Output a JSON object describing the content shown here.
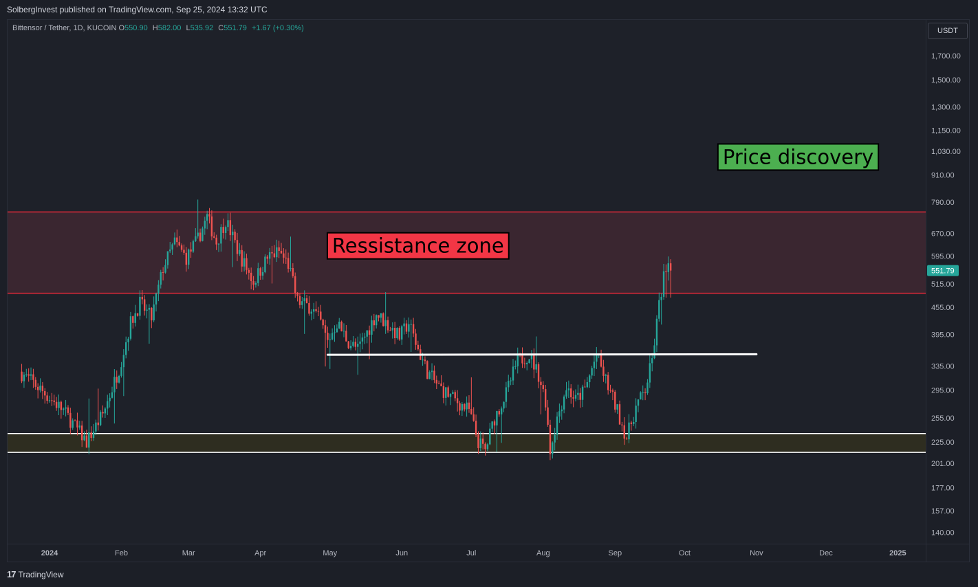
{
  "header": {
    "published_line": "SolbergInvest published on TradingView.com, Sep 25, 2024 13:32 UTC"
  },
  "symbol": {
    "title": "Bittensor / Tether, 1D, KUCOIN",
    "o_label": "O",
    "o": "550.90",
    "h_label": "H",
    "h": "582.00",
    "l_label": "L",
    "l": "535.92",
    "c_label": "C",
    "c": "551.79",
    "change": "+1.67 (+0.30%)"
  },
  "currency_button": "USDT",
  "footer": {
    "brand": "TradingView",
    "logo": "17"
  },
  "colors": {
    "up": "#26a69a",
    "down": "#ef5350",
    "resistance_line": "#e0293a",
    "resistance_fill": "#3a2630",
    "support_fill": "#2e2d20",
    "trend_line": "#ffffff",
    "price_discovery_bg": "#4caf50",
    "resistance_label_bg": "#f23645"
  },
  "chart_data": {
    "type": "candlestick",
    "y_scale": "log",
    "ylim": [
      132,
      2050
    ],
    "y_ticks": [
      "1,700.00",
      "1,500.00",
      "1,300.00",
      "1,150.00",
      "1,030.00",
      "910.00",
      "790.00",
      "670.00",
      "595.00",
      "515.00",
      "455.00",
      "395.00",
      "335.00",
      "295.00",
      "255.00",
      "225.00",
      "201.00",
      "177.00",
      "157.00",
      "140.00"
    ],
    "x_ticks": [
      "2024",
      "Feb",
      "Mar",
      "Apr",
      "May",
      "Jun",
      "Jul",
      "Aug",
      "Sep",
      "Oct",
      "Nov",
      "Dec",
      "2025"
    ],
    "x_tick_dates": [
      "2024-01-01",
      "2024-02-01",
      "2024-03-01",
      "2024-04-01",
      "2024-05-01",
      "2024-06-01",
      "2024-07-01",
      "2024-08-01",
      "2024-09-01",
      "2024-10-01",
      "2024-11-01",
      "2024-12-01",
      "2025-01-01"
    ],
    "last_price": "551.79",
    "anchors": [
      [
        "2023-12-20",
        325
      ],
      [
        "2023-12-25",
        310
      ],
      [
        "2023-12-31",
        290
      ],
      [
        "2024-01-08",
        265
      ],
      [
        "2024-01-14",
        240
      ],
      [
        "2024-01-18",
        225
      ],
      [
        "2024-01-25",
        260
      ],
      [
        "2024-02-01",
        330
      ],
      [
        "2024-02-06",
        420
      ],
      [
        "2024-02-10",
        465
      ],
      [
        "2024-02-15",
        430
      ],
      [
        "2024-02-20",
        560
      ],
      [
        "2024-02-25",
        640
      ],
      [
        "2024-03-01",
        590
      ],
      [
        "2024-03-06",
        650
      ],
      [
        "2024-03-10",
        730
      ],
      [
        "2024-03-14",
        640
      ],
      [
        "2024-03-18",
        720
      ],
      [
        "2024-03-24",
        600
      ],
      [
        "2024-03-30",
        520
      ],
      [
        "2024-04-05",
        590
      ],
      [
        "2024-04-10",
        610
      ],
      [
        "2024-04-14",
        570
      ],
      [
        "2024-04-18",
        470
      ],
      [
        "2024-04-24",
        455
      ],
      [
        "2024-04-28",
        420
      ],
      [
        "2024-05-01",
        380
      ],
      [
        "2024-05-05",
        420
      ],
      [
        "2024-05-10",
        380
      ],
      [
        "2024-05-14",
        365
      ],
      [
        "2024-05-18",
        400
      ],
      [
        "2024-05-22",
        440
      ],
      [
        "2024-05-26",
        420
      ],
      [
        "2024-06-01",
        390
      ],
      [
        "2024-06-05",
        420
      ],
      [
        "2024-06-09",
        365
      ],
      [
        "2024-06-13",
        325
      ],
      [
        "2024-06-18",
        300
      ],
      [
        "2024-06-25",
        280
      ],
      [
        "2024-07-01",
        265
      ],
      [
        "2024-07-05",
        225
      ],
      [
        "2024-07-08",
        215
      ],
      [
        "2024-07-12",
        255
      ],
      [
        "2024-07-17",
        290
      ],
      [
        "2024-07-22",
        345
      ],
      [
        "2024-07-27",
        355
      ],
      [
        "2024-07-31",
        320
      ],
      [
        "2024-08-03",
        280
      ],
      [
        "2024-08-05",
        215
      ],
      [
        "2024-08-08",
        255
      ],
      [
        "2024-08-12",
        300
      ],
      [
        "2024-08-16",
        280
      ],
      [
        "2024-08-20",
        295
      ],
      [
        "2024-08-25",
        355
      ],
      [
        "2024-08-29",
        310
      ],
      [
        "2024-09-03",
        265
      ],
      [
        "2024-09-07",
        230
      ],
      [
        "2024-09-11",
        270
      ],
      [
        "2024-09-15",
        295
      ],
      [
        "2024-09-18",
        345
      ],
      [
        "2024-09-21",
        460
      ],
      [
        "2024-09-23",
        535
      ],
      [
        "2024-09-25",
        551.79
      ]
    ],
    "zones": [
      {
        "type": "resistance",
        "low": 490,
        "high": 750
      },
      {
        "type": "support",
        "low": 213,
        "high": 235
      }
    ],
    "trendline": {
      "start": "2024-04-30",
      "end": "2024-11-01",
      "y_start": 355,
      "y_end": 356
    },
    "annotations": [
      {
        "text": "Ressistance zone",
        "date": "2024-06-08",
        "price": 628
      },
      {
        "text": "Price discovery",
        "date": "2024-11-19",
        "price": 1000
      }
    ]
  }
}
